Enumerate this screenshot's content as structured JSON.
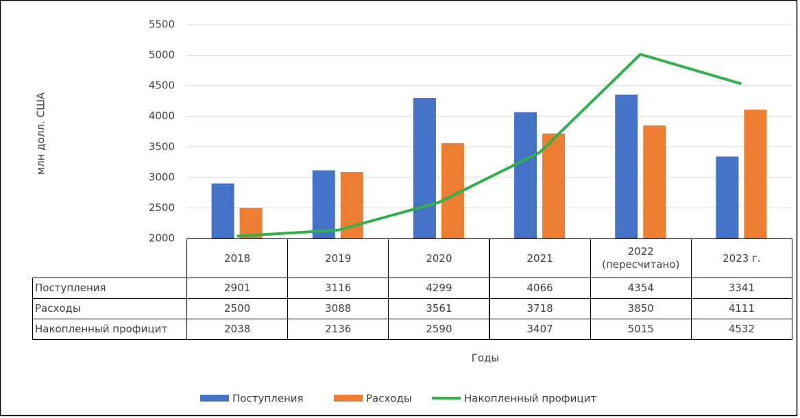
{
  "chart_data": {
    "type": "bar",
    "y_label": "млн долл. США",
    "x_label": "Годы",
    "categories": [
      "2018",
      "2019",
      "2020",
      "2021",
      "2022 (пересчитано)",
      "2023 г."
    ],
    "series": [
      {
        "name": "Поступления",
        "color": "#4472c4",
        "type": "bar",
        "values": [
          2901,
          3116,
          4299,
          4066,
          4354,
          3341
        ]
      },
      {
        "name": "Расходы",
        "color": "#ed7d31",
        "type": "bar",
        "values": [
          2500,
          3088,
          3561,
          3718,
          3850,
          4111
        ]
      },
      {
        "name": "Накопленный профицит",
        "color": "#2db34a",
        "type": "line",
        "values": [
          2038,
          2136,
          2590,
          3407,
          5015,
          4532
        ]
      }
    ],
    "ylim": [
      2000,
      5500
    ],
    "yticks": [
      2000,
      2500,
      3000,
      3500,
      4000,
      4500,
      5000,
      5500
    ],
    "grid": true,
    "legend": "bottom"
  }
}
